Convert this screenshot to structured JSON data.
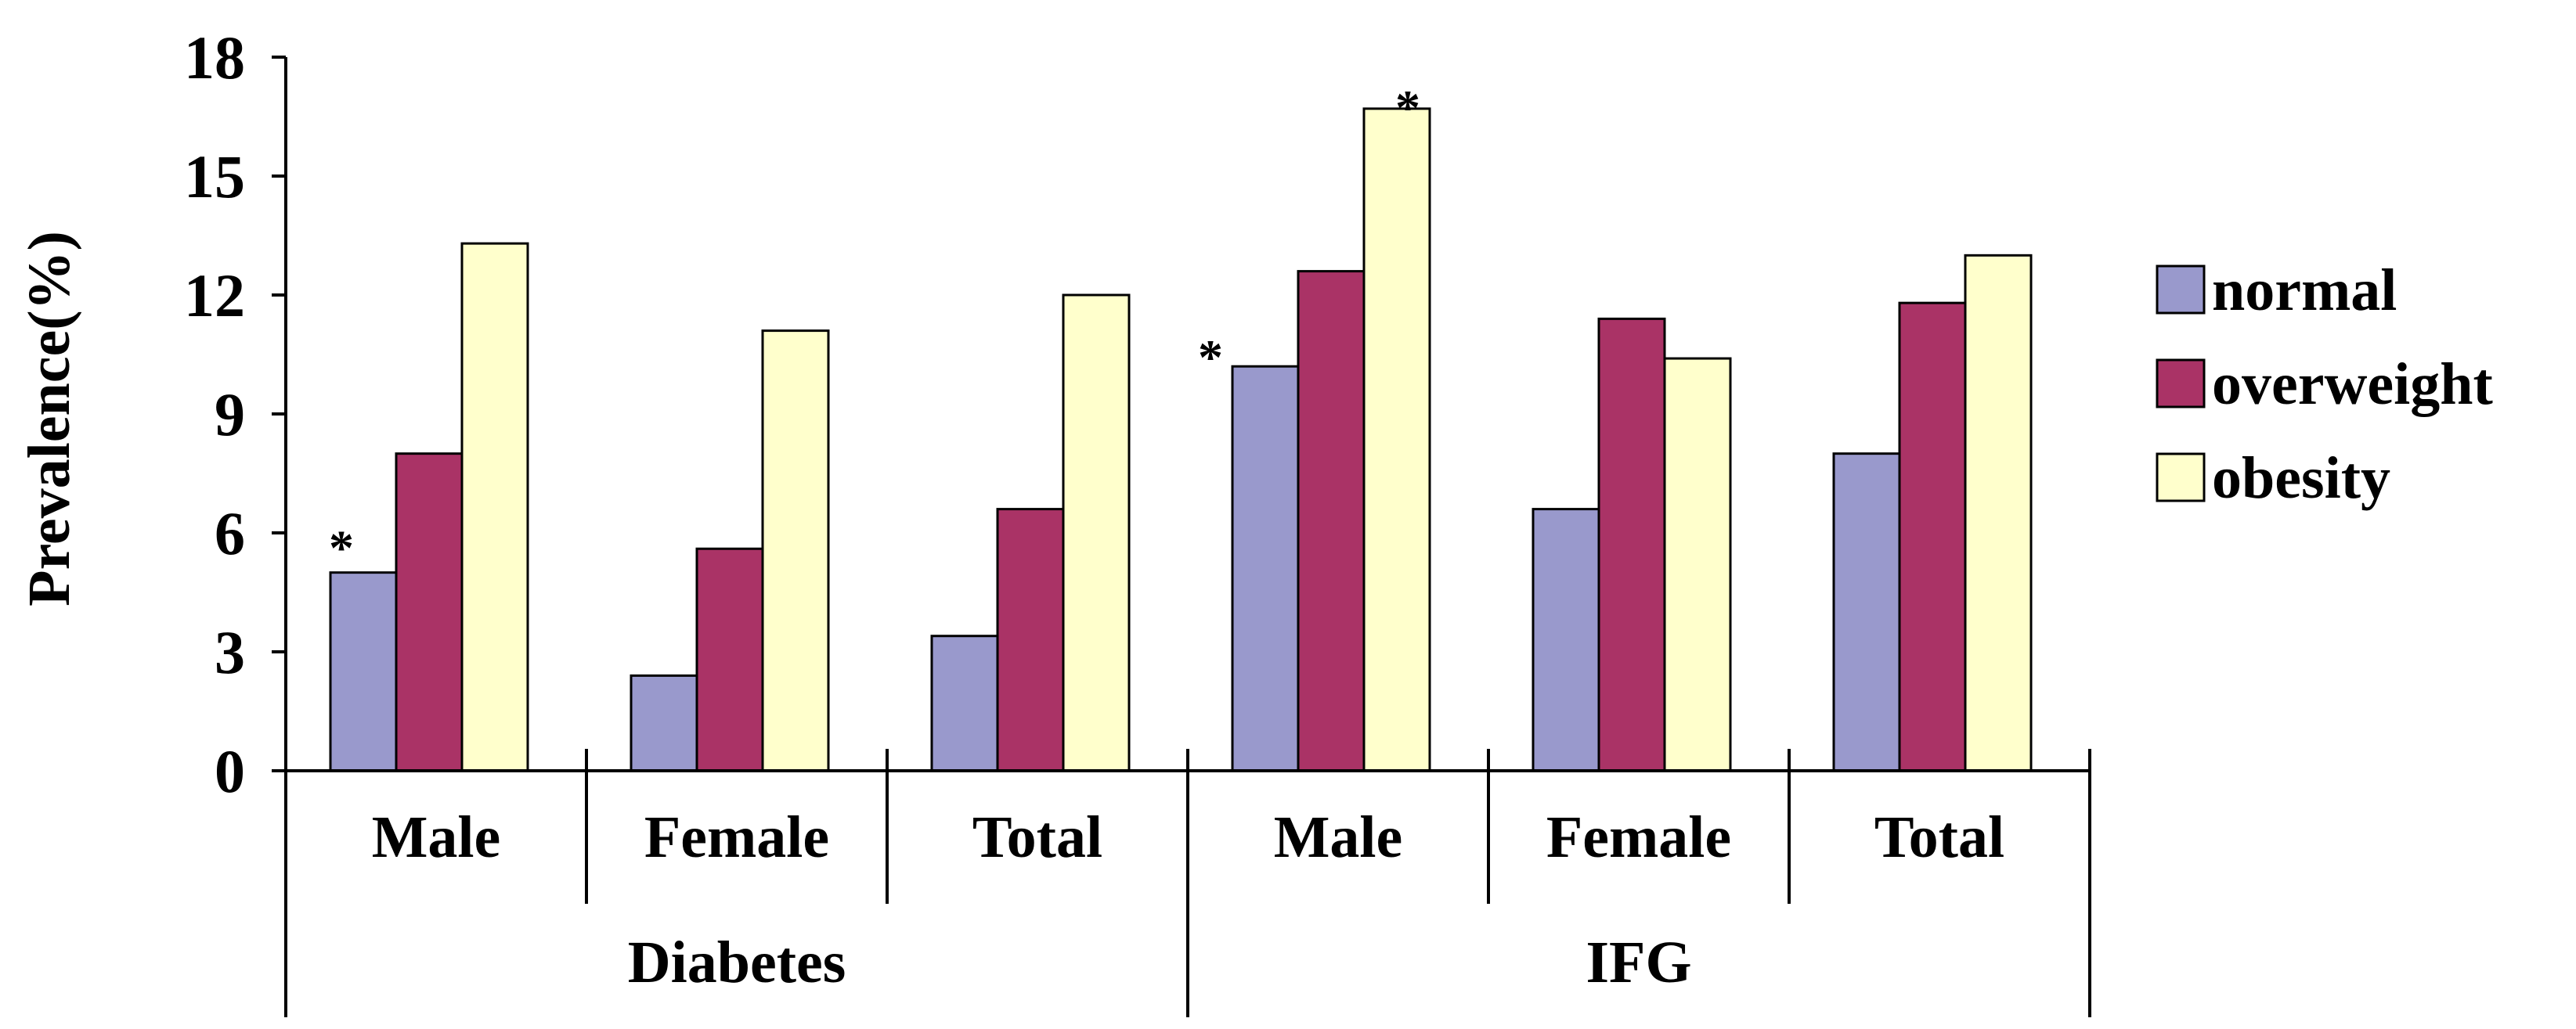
{
  "chart_data": {
    "type": "bar",
    "title": "",
    "xlabel": "",
    "ylabel": "Prevalence(%)",
    "ylim": [
      0,
      18
    ],
    "yticks": [
      "0",
      "3",
      "6",
      "9",
      "12",
      "15",
      "18"
    ],
    "groups": [
      {
        "name": "Diabetes",
        "categories": [
          "Male",
          "Female",
          "Total"
        ]
      },
      {
        "name": "IFG",
        "categories": [
          "Male",
          "Female",
          "Total"
        ]
      }
    ],
    "categories": [
      "Male",
      "Female",
      "Total",
      "Male",
      "Female",
      "Total"
    ],
    "series": [
      {
        "name": "normal",
        "color": "#9999cc",
        "values": [
          5.0,
          2.4,
          3.4,
          10.2,
          6.6,
          8.0
        ]
      },
      {
        "name": "overweight",
        "color": "#aa3366",
        "values": [
          8.0,
          5.6,
          6.6,
          12.6,
          11.4,
          11.8
        ]
      },
      {
        "name": "obesity",
        "color": "#ffffcc",
        "values": [
          13.3,
          11.1,
          12.0,
          16.7,
          10.4,
          13.0
        ]
      }
    ],
    "annotations": [
      {
        "text": "*",
        "category_index": 0,
        "series": "normal"
      },
      {
        "text": "*",
        "category_index": 3,
        "series": "normal"
      },
      {
        "text": "*",
        "category_index": 3,
        "series": "obesity"
      }
    ],
    "legend_position": "right",
    "grid": false
  }
}
